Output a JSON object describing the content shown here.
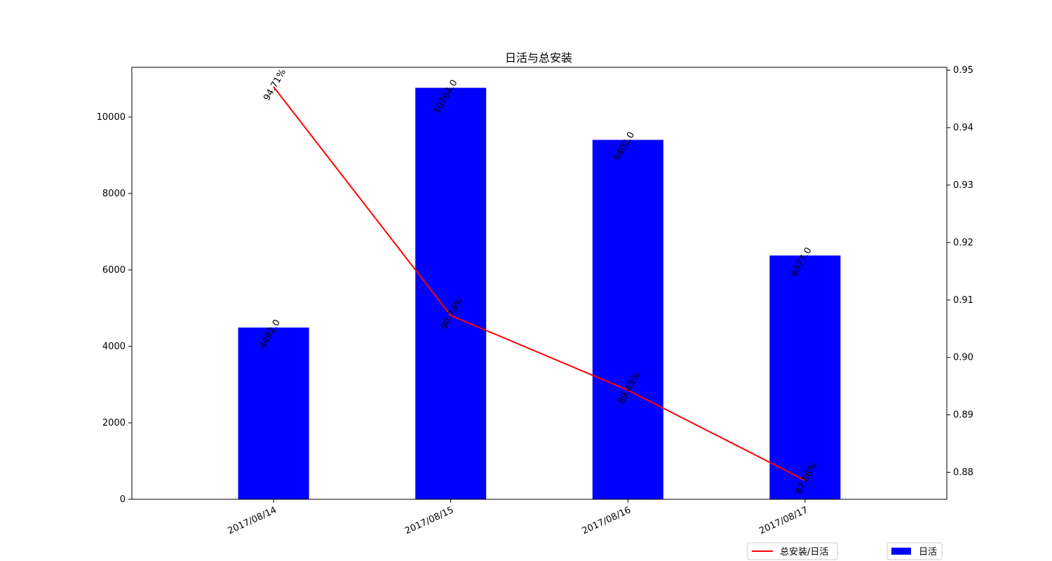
{
  "chart_data": {
    "type": "bar",
    "title": "日活与总安装",
    "categories": [
      "2017/08/14",
      "2017/08/15",
      "2017/08/16",
      "2017/08/17"
    ],
    "series": [
      {
        "name": "日活",
        "type": "bar",
        "axis": "left",
        "color": "#0000ff",
        "values": [
          4492,
          10764,
          9402,
          6377
        ],
        "labels": [
          "4492.0",
          "10764.0",
          "9402.0",
          "6377.0"
        ]
      },
      {
        "name": "总安装/日活",
        "type": "line",
        "axis": "right",
        "color": "#ff0000",
        "values": [
          0.9471,
          0.9073,
          0.8943,
          0.8786
        ],
        "labels": [
          "94.71%",
          "90.73%",
          "89.43%",
          "87.86%"
        ]
      }
    ],
    "y_left": {
      "ylim": [
        0,
        11300
      ],
      "ticks": [
        0,
        2000,
        4000,
        6000,
        8000,
        10000
      ],
      "tick_labels": [
        "0",
        "2000",
        "4000",
        "6000",
        "8000",
        "10000"
      ]
    },
    "y_right": {
      "ylim": [
        0.8753,
        0.9505
      ],
      "ticks": [
        0.88,
        0.89,
        0.9,
        0.91,
        0.92,
        0.93,
        0.94,
        0.95
      ],
      "tick_labels": [
        "0.88",
        "0.89",
        "0.90",
        "0.91",
        "0.92",
        "0.93",
        "0.94",
        "0.95"
      ]
    },
    "grid": false,
    "legend": {
      "line_entry": "总安装/日活",
      "bar_entry": "日活",
      "placement": "bottom-right"
    }
  }
}
